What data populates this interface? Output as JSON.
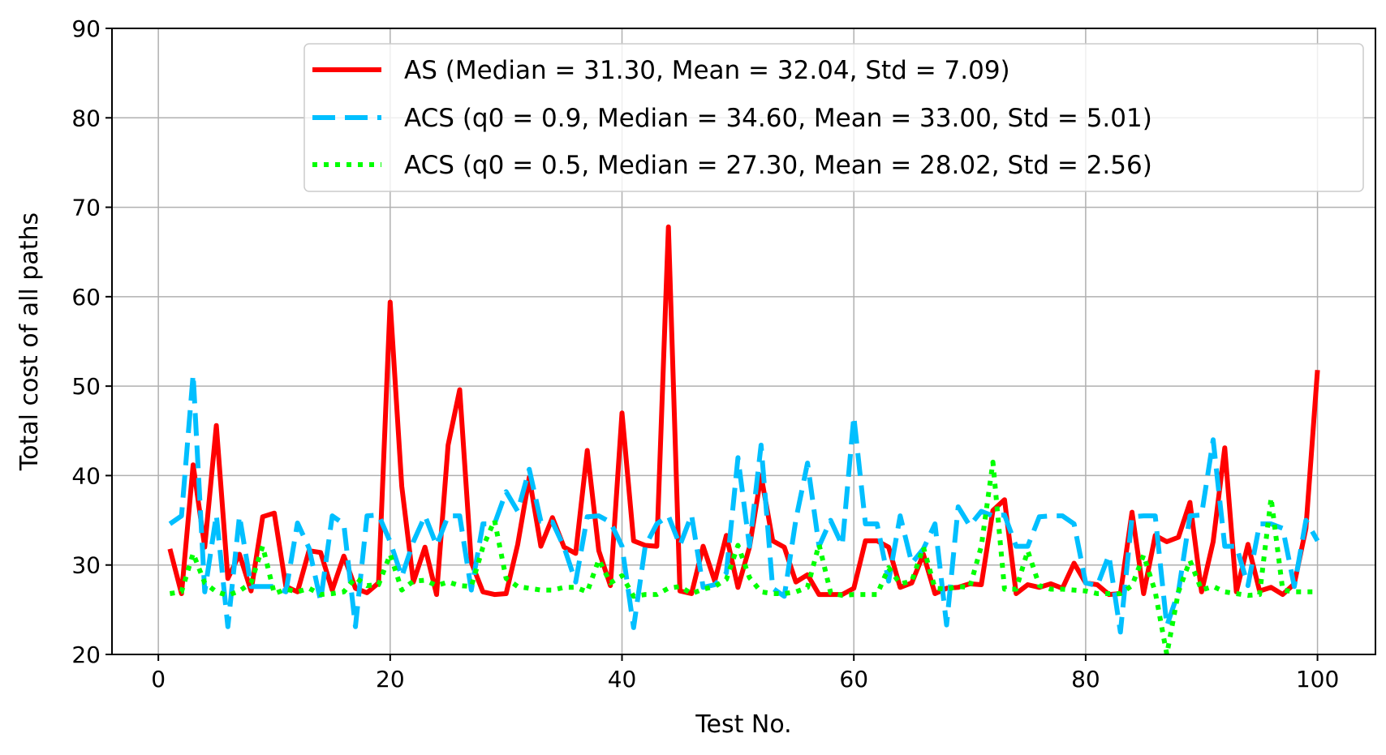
{
  "chart_data": {
    "type": "line",
    "title": "",
    "xlabel": "Test No.",
    "ylabel": "Total cost of all paths",
    "xlim": [
      -4,
      105
    ],
    "ylim": [
      20,
      90
    ],
    "xticks": [
      0,
      20,
      40,
      60,
      80,
      100
    ],
    "yticks": [
      20,
      30,
      40,
      50,
      60,
      70,
      80,
      90
    ],
    "grid": true,
    "legend_position": "top-right",
    "x": [
      1,
      2,
      3,
      4,
      5,
      6,
      7,
      8,
      9,
      10,
      11,
      12,
      13,
      14,
      15,
      16,
      17,
      18,
      19,
      20,
      21,
      22,
      23,
      24,
      25,
      26,
      27,
      28,
      29,
      30,
      31,
      32,
      33,
      34,
      35,
      36,
      37,
      38,
      39,
      40,
      41,
      42,
      43,
      44,
      45,
      46,
      47,
      48,
      49,
      50,
      51,
      52,
      53,
      54,
      55,
      56,
      57,
      58,
      59,
      60,
      61,
      62,
      63,
      64,
      65,
      66,
      67,
      68,
      69,
      70,
      71,
      72,
      73,
      74,
      75,
      76,
      77,
      78,
      79,
      80,
      81,
      82,
      83,
      84,
      85,
      86,
      87,
      88,
      89,
      90,
      91,
      92,
      93,
      94,
      95,
      96,
      97,
      98,
      99,
      100
    ],
    "series": [
      {
        "name": "AS (Median = 31.30, Mean = 32.04, Std = 7.09)",
        "color": "#ff0000",
        "style": "solid",
        "values": [
          31.8,
          26.8,
          41.2,
          32.0,
          45.6,
          28.5,
          31.2,
          27.1,
          35.4,
          35.8,
          27.6,
          27.0,
          31.6,
          31.4,
          27.2,
          31.0,
          27.4,
          26.9,
          28.0,
          59.4,
          38.8,
          28.1,
          32.0,
          26.7,
          43.4,
          49.6,
          30.3,
          27.0,
          26.7,
          26.8,
          32.3,
          39.8,
          32.1,
          35.3,
          32.0,
          31.3,
          42.8,
          31.6,
          27.7,
          47.0,
          32.7,
          32.2,
          32.1,
          67.8,
          27.1,
          26.8,
          32.1,
          28.2,
          33.3,
          27.5,
          32.0,
          40.0,
          32.7,
          32.0,
          28.1,
          28.9,
          26.7,
          26.7,
          26.7,
          27.4,
          32.7,
          32.7,
          32.0,
          27.5,
          28.0,
          31.2,
          26.8,
          27.4,
          27.5,
          27.9,
          27.8,
          36.1,
          37.3,
          26.8,
          27.8,
          27.5,
          27.9,
          27.4,
          30.2,
          28.0,
          27.8,
          26.7,
          26.8,
          35.9,
          26.8,
          33.3,
          32.6,
          33.1,
          37.0,
          27.0,
          32.6,
          43.1,
          27.0,
          32.3,
          27.1,
          27.5,
          26.7,
          27.9,
          34.1,
          51.8
        ]
      },
      {
        "name": "ACS (q0 = 0.9, Median = 34.60, Mean = 33.00, Std = 5.01)",
        "color": "#00bfff",
        "style": "dashed",
        "values": [
          34.6,
          35.5,
          51.3,
          27.0,
          35.6,
          23.1,
          35.5,
          27.6,
          27.6,
          27.6,
          27.0,
          34.7,
          31.9,
          26.0,
          35.5,
          34.6,
          23.1,
          35.5,
          35.6,
          32.6,
          28.7,
          32.6,
          35.5,
          32.2,
          35.5,
          35.5,
          27.2,
          34.6,
          34.6,
          38.2,
          36.0,
          40.7,
          34.9,
          34.8,
          32.0,
          28.1,
          35.4,
          35.5,
          34.8,
          32.1,
          23.0,
          32.1,
          34.6,
          35.5,
          32.2,
          35.6,
          27.5,
          27.8,
          29.1,
          42.0,
          32.1,
          43.4,
          27.4,
          26.5,
          35.1,
          41.4,
          32.1,
          35.0,
          32.2,
          46.6,
          34.6,
          34.6,
          28.2,
          35.5,
          30.2,
          31.8,
          34.6,
          23.3,
          36.5,
          34.4,
          36.0,
          35.5,
          35.6,
          32.1,
          32.1,
          35.4,
          35.5,
          35.5,
          34.6,
          28.0,
          27.7,
          31.1,
          22.5,
          35.4,
          35.5,
          35.5,
          23.2,
          27.0,
          35.5,
          35.6,
          44.0,
          32.1,
          32.1,
          27.7,
          34.6,
          34.6,
          34.1,
          27.6,
          35.0,
          32.7
        ]
      },
      {
        "name": "ACS (q0 = 0.5, Median = 27.30, Mean = 28.02, Std = 2.56)",
        "color": "#00ff00",
        "style": "dotted",
        "values": [
          26.8,
          27.0,
          31.3,
          28.0,
          27.0,
          26.6,
          27.1,
          28.0,
          32.1,
          26.8,
          27.3,
          27.0,
          27.4,
          26.7,
          26.8,
          27.0,
          28.6,
          27.7,
          27.8,
          31.2,
          27.2,
          28.2,
          28.3,
          27.7,
          28.1,
          27.7,
          27.6,
          32.0,
          35.0,
          28.5,
          27.6,
          27.4,
          27.2,
          27.2,
          27.5,
          27.5,
          27.0,
          30.6,
          28.0,
          28.8,
          26.5,
          26.7,
          26.7,
          27.4,
          27.6,
          26.8,
          27.3,
          27.6,
          28.4,
          32.2,
          28.6,
          27.0,
          26.8,
          26.8,
          27.0,
          27.5,
          32.3,
          26.9,
          26.6,
          26.7,
          26.7,
          26.7,
          29.7,
          27.9,
          28.2,
          32.0,
          27.4,
          27.3,
          27.6,
          27.5,
          32.1,
          41.5,
          27.3,
          27.3,
          31.6,
          27.7,
          27.3,
          27.3,
          27.2,
          27.1,
          26.8,
          26.8,
          26.8,
          27.7,
          31.1,
          27.0,
          20.0,
          27.0,
          30.5,
          27.2,
          27.6,
          27.0,
          26.8,
          26.6,
          26.7,
          37.5,
          27.2,
          27.0,
          27.0,
          27.0
        ]
      }
    ]
  }
}
